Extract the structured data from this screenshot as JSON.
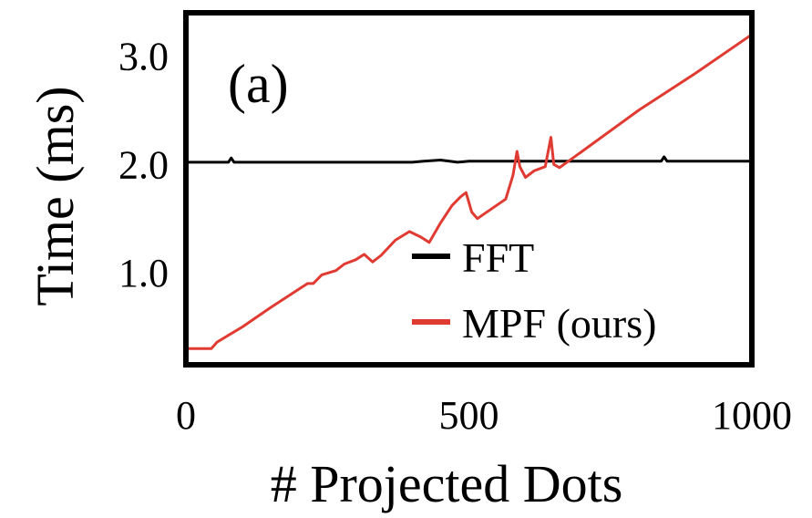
{
  "chart_data": {
    "type": "line",
    "panel_label": "(a)",
    "xlabel": "# Projected Dots",
    "ylabel": "Time (ms)",
    "xlim": [
      0,
      1000
    ],
    "ylim": [
      0.15,
      3.4
    ],
    "x_ticks": [
      {
        "value": 0,
        "label": "0"
      },
      {
        "value": 500,
        "label": "500"
      },
      {
        "value": 1000,
        "label": "1000"
      }
    ],
    "y_ticks": [
      {
        "value": 1.0,
        "label": "1.0"
      },
      {
        "value": 2.0,
        "label": "2.0"
      },
      {
        "value": 3.0,
        "label": "3.0"
      }
    ],
    "grid": false,
    "legend_position": "bottom-right",
    "series": [
      {
        "name": "FFT",
        "color": "#000000",
        "points": [
          [
            0,
            2.02
          ],
          [
            75,
            2.02
          ],
          [
            80,
            2.06
          ],
          [
            85,
            2.02
          ],
          [
            200,
            2.02
          ],
          [
            400,
            2.02
          ],
          [
            420,
            2.03
          ],
          [
            450,
            2.04
          ],
          [
            480,
            2.02
          ],
          [
            500,
            2.03
          ],
          [
            600,
            2.03
          ],
          [
            700,
            2.03
          ],
          [
            840,
            2.03
          ],
          [
            845,
            2.07
          ],
          [
            850,
            2.03
          ],
          [
            1000,
            2.03
          ]
        ]
      },
      {
        "name": "MPF (ours)",
        "color": "#e03b32",
        "points": [
          [
            0,
            0.3
          ],
          [
            45,
            0.3
          ],
          [
            55,
            0.36
          ],
          [
            100,
            0.5
          ],
          [
            150,
            0.68
          ],
          [
            200,
            0.85
          ],
          [
            215,
            0.9
          ],
          [
            225,
            0.9
          ],
          [
            240,
            0.98
          ],
          [
            265,
            1.02
          ],
          [
            280,
            1.08
          ],
          [
            300,
            1.12
          ],
          [
            315,
            1.17
          ],
          [
            330,
            1.1
          ],
          [
            345,
            1.16
          ],
          [
            370,
            1.3
          ],
          [
            395,
            1.38
          ],
          [
            415,
            1.33
          ],
          [
            430,
            1.28
          ],
          [
            450,
            1.46
          ],
          [
            470,
            1.62
          ],
          [
            485,
            1.7
          ],
          [
            495,
            1.74
          ],
          [
            505,
            1.56
          ],
          [
            515,
            1.5
          ],
          [
            565,
            1.68
          ],
          [
            578,
            1.9
          ],
          [
            585,
            2.12
          ],
          [
            590,
            1.98
          ],
          [
            600,
            1.88
          ],
          [
            615,
            1.94
          ],
          [
            635,
            1.98
          ],
          [
            645,
            2.25
          ],
          [
            650,
            2.0
          ],
          [
            660,
            1.97
          ],
          [
            700,
            2.12
          ],
          [
            800,
            2.5
          ],
          [
            900,
            2.84
          ],
          [
            1000,
            3.2
          ]
        ]
      }
    ]
  }
}
